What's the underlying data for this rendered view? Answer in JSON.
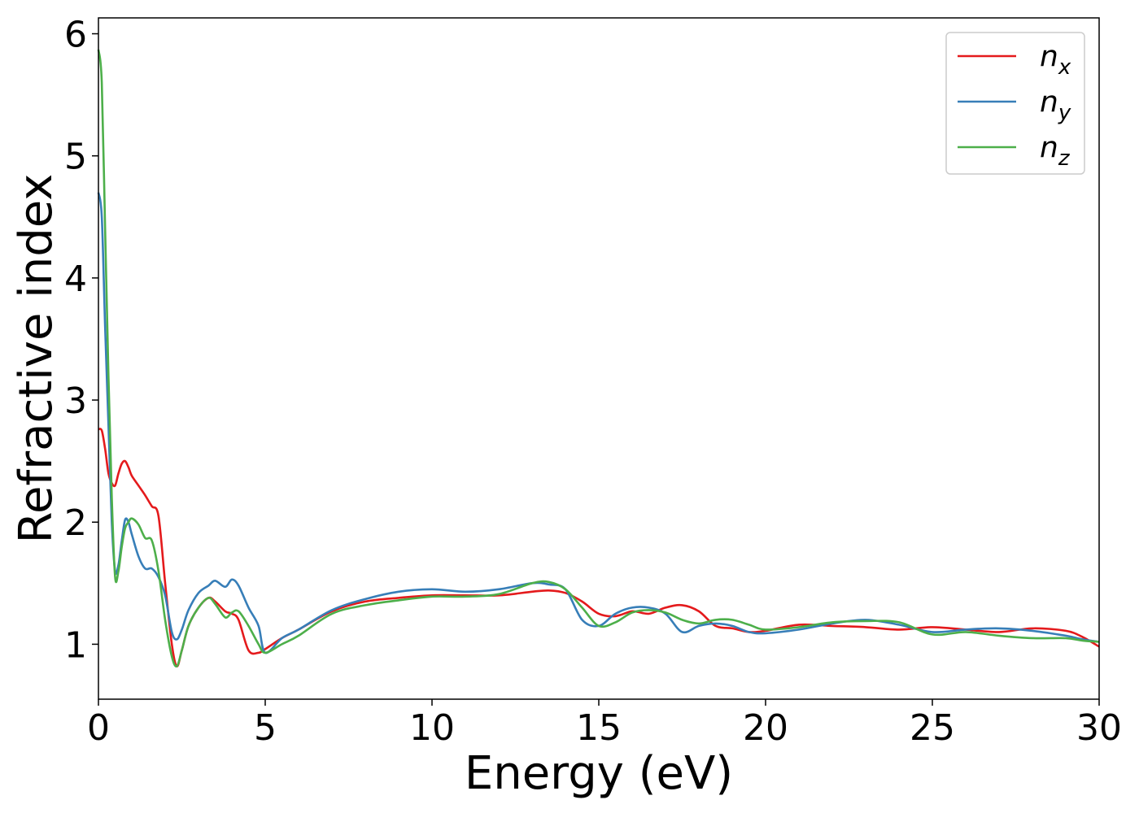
{
  "chart_data": {
    "type": "line",
    "xlabel": "Energy (eV)",
    "ylabel": "Refractive index",
    "xlim": [
      0,
      30
    ],
    "ylim": [
      0.55,
      6.13
    ],
    "xticks": [
      0,
      5,
      10,
      15,
      20,
      25,
      30
    ],
    "yticks": [
      1,
      2,
      3,
      4,
      5,
      6
    ],
    "grid": false,
    "legend_position": "top-right",
    "x": [
      0,
      0.1,
      0.2,
      0.3,
      0.4,
      0.5,
      0.6,
      0.7,
      0.8,
      0.9,
      1.0,
      1.2,
      1.4,
      1.6,
      1.8,
      2.0,
      2.2,
      2.35,
      2.5,
      2.7,
      3.0,
      3.3,
      3.5,
      3.8,
      4.0,
      4.2,
      4.5,
      4.8,
      5.0,
      5.5,
      6.0,
      7.0,
      8.0,
      9.0,
      10.0,
      11.0,
      12.0,
      13.0,
      13.5,
      14.0,
      14.5,
      15.0,
      15.5,
      16.0,
      16.5,
      17.0,
      17.5,
      18.0,
      18.5,
      19.0,
      19.5,
      20.0,
      21.0,
      22.0,
      23.0,
      24.0,
      25.0,
      26.0,
      27.0,
      28.0,
      29.0,
      29.5,
      30.0
    ],
    "series": [
      {
        "name": "n_x",
        "label_base": "n",
        "label_sub": "x",
        "color": "#e41a1c",
        "values": [
          2.76,
          2.75,
          2.6,
          2.4,
          2.32,
          2.3,
          2.4,
          2.48,
          2.5,
          2.45,
          2.38,
          2.3,
          2.22,
          2.13,
          2.05,
          1.5,
          1.0,
          0.82,
          0.95,
          1.15,
          1.3,
          1.38,
          1.35,
          1.27,
          1.25,
          1.2,
          0.95,
          0.93,
          0.96,
          1.05,
          1.12,
          1.27,
          1.35,
          1.38,
          1.4,
          1.4,
          1.4,
          1.43,
          1.44,
          1.42,
          1.35,
          1.25,
          1.23,
          1.27,
          1.25,
          1.3,
          1.32,
          1.27,
          1.15,
          1.13,
          1.1,
          1.11,
          1.16,
          1.15,
          1.14,
          1.12,
          1.14,
          1.12,
          1.1,
          1.13,
          1.11,
          1.06,
          0.98
        ]
      },
      {
        "name": "n_y",
        "label_base": "n",
        "label_sub": "y",
        "color": "#377eb8",
        "values": [
          4.7,
          4.5,
          3.6,
          2.8,
          2.0,
          1.6,
          1.65,
          1.85,
          2.02,
          2.0,
          1.9,
          1.72,
          1.62,
          1.62,
          1.55,
          1.4,
          1.1,
          1.04,
          1.12,
          1.28,
          1.42,
          1.48,
          1.52,
          1.47,
          1.53,
          1.48,
          1.3,
          1.15,
          0.93,
          1.05,
          1.12,
          1.28,
          1.37,
          1.43,
          1.45,
          1.43,
          1.45,
          1.5,
          1.49,
          1.45,
          1.2,
          1.15,
          1.25,
          1.3,
          1.3,
          1.25,
          1.1,
          1.15,
          1.17,
          1.15,
          1.1,
          1.09,
          1.12,
          1.17,
          1.2,
          1.16,
          1.1,
          1.12,
          1.13,
          1.11,
          1.07,
          1.04,
          1.02
        ]
      },
      {
        "name": "n_z",
        "label_base": "n",
        "label_sub": "z",
        "color": "#4daf4a",
        "values": [
          5.87,
          5.6,
          4.4,
          3.2,
          2.2,
          1.55,
          1.6,
          1.8,
          1.95,
          2.0,
          2.03,
          1.98,
          1.87,
          1.85,
          1.6,
          1.2,
          0.9,
          0.82,
          0.95,
          1.15,
          1.3,
          1.38,
          1.33,
          1.22,
          1.26,
          1.27,
          1.15,
          1.0,
          0.93,
          1.0,
          1.07,
          1.25,
          1.32,
          1.36,
          1.39,
          1.39,
          1.41,
          1.5,
          1.51,
          1.45,
          1.3,
          1.15,
          1.18,
          1.26,
          1.28,
          1.26,
          1.2,
          1.17,
          1.2,
          1.2,
          1.16,
          1.12,
          1.14,
          1.18,
          1.19,
          1.18,
          1.08,
          1.1,
          1.07,
          1.05,
          1.05,
          1.03,
          1.02
        ]
      }
    ]
  }
}
